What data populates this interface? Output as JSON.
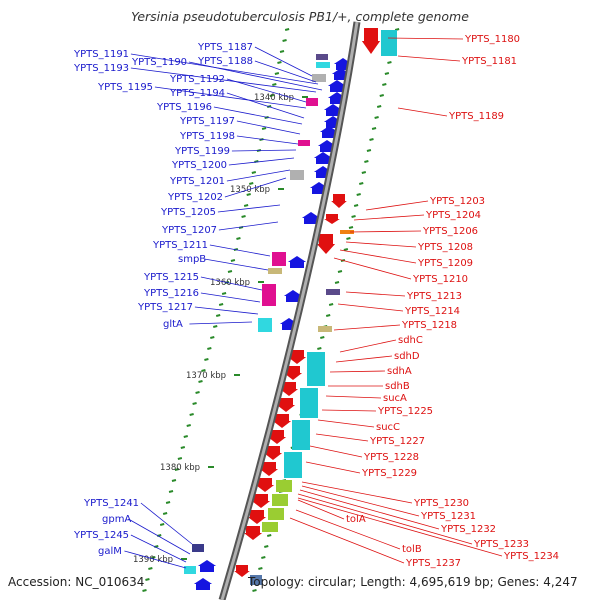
{
  "title": "Yersinia pseudotuberculosis PB1/+, complete genome",
  "footer": {
    "accession": "Accession: NC_010634",
    "topology": "Topology: circular; Length: 4,695,619 bp; Genes: 4,247"
  },
  "colors": {
    "left_labels": "#1a1acc",
    "right_labels": "#dd1111",
    "backbone": "#999999",
    "tick": "#2a8a2a"
  },
  "kbp_ticks": [
    "1340 kbp",
    "1350 kbp",
    "1360 kbp",
    "1370 kbp",
    "1380 kbp",
    "1390 kbp"
  ],
  "left_genes": [
    "YPTS_1191",
    "YPTS_1193",
    "YPTS_1187",
    "YPTS_1190",
    "YPTS_1188",
    "YPTS_1192",
    "YPTS_1195",
    "YPTS_1194",
    "YPTS_1196",
    "YPTS_1197",
    "YPTS_1198",
    "YPTS_1199",
    "YPTS_1200",
    "YPTS_1201",
    "YPTS_1202",
    "YPTS_1205",
    "YPTS_1207",
    "YPTS_1211",
    "smpB",
    "YPTS_1215",
    "YPTS_1216",
    "YPTS_1217",
    "gltA",
    "YPTS_1241",
    "gpmA",
    "YPTS_1245",
    "galM"
  ],
  "right_genes": [
    "YPTS_1180",
    "YPTS_1181",
    "YPTS_1189",
    "YPTS_1203",
    "YPTS_1204",
    "YPTS_1206",
    "YPTS_1208",
    "YPTS_1209",
    "YPTS_1210",
    "YPTS_1213",
    "YPTS_1214",
    "YPTS_1218",
    "sdhC",
    "sdhD",
    "sdhA",
    "sdhB",
    "sucA",
    "YPTS_1225",
    "sucC",
    "YPTS_1227",
    "YPTS_1228",
    "YPTS_1229",
    "YPTS_1230",
    "YPTS_1231",
    "YPTS_1232",
    "tolA",
    "YPTS_1233",
    "YPTS_1234",
    "tolB",
    "YPTS_1237"
  ]
}
